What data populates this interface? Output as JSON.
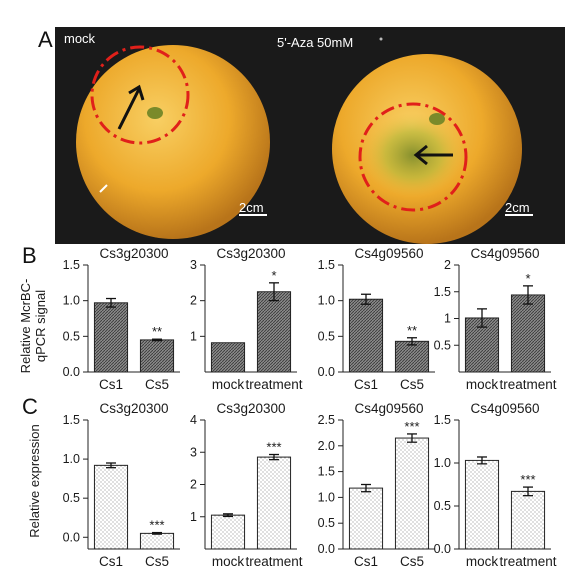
{
  "panel_labels": {
    "a": "A",
    "b": "B",
    "c": "C"
  },
  "photo": {
    "mock_label": "mock",
    "treatment_label": "5'-Aza 50mM",
    "scale_bar_left": "2cm",
    "scale_bar_right": "2cm",
    "fruit_color": "#f0b030",
    "circle_color": "#e0201a",
    "background_color": "#1a1a1a"
  },
  "y_labels": {
    "row_b_line1": "Relative McrBC-",
    "row_b_line2": "qPCR signal",
    "row_c": "Relative expression"
  },
  "chart_data": [
    {
      "type": "bar",
      "row": "B",
      "title": "Cs3g20300",
      "categories": [
        "Cs1",
        "Cs5"
      ],
      "values": [
        0.97,
        0.45
      ],
      "errors": [
        0.06,
        0.01
      ],
      "significance": [
        "",
        "**"
      ],
      "ylim": [
        0,
        1.5
      ],
      "yticks": [
        "0.0",
        "0.5",
        "1.0",
        "1.5"
      ],
      "pattern": "hatch"
    },
    {
      "type": "bar",
      "row": "B",
      "title": "Cs3g20300",
      "categories": [
        "mock",
        "treatment"
      ],
      "values": [
        0.82,
        2.25
      ],
      "errors": [
        0,
        0.25
      ],
      "significance": [
        "",
        "*"
      ],
      "ylim": [
        0,
        3
      ],
      "yticks": [
        "1",
        "2",
        "3"
      ],
      "pattern": "hatch"
    },
    {
      "type": "bar",
      "row": "B",
      "title": "Cs4g09560",
      "categories": [
        "Cs1",
        "Cs5"
      ],
      "values": [
        1.02,
        0.43
      ],
      "errors": [
        0.07,
        0.05
      ],
      "significance": [
        "",
        "**"
      ],
      "ylim": [
        0,
        1.5
      ],
      "yticks": [
        "0.0",
        "0.5",
        "1.0",
        "1.5"
      ],
      "pattern": "hatch"
    },
    {
      "type": "bar",
      "row": "B",
      "title": "Cs4g09560",
      "categories": [
        "mock",
        "treatment"
      ],
      "values": [
        1.01,
        1.44
      ],
      "errors": [
        0.17,
        0.17
      ],
      "significance": [
        "",
        "*"
      ],
      "ylim": [
        0,
        2
      ],
      "yticks": [
        "0.5",
        "1",
        "1.5",
        "2"
      ],
      "pattern": "hatch"
    },
    {
      "type": "bar",
      "row": "C",
      "title": "Cs3g20300",
      "categories": [
        "Cs1",
        "Cs5"
      ],
      "values": [
        0.92,
        0.05
      ],
      "errors": [
        0.03,
        0.01
      ],
      "significance": [
        "",
        "***"
      ],
      "ylim": [
        -0.15,
        1.5
      ],
      "yticks": [
        "0.0",
        "0.5",
        "1.0",
        "1.5"
      ],
      "pattern": "dots"
    },
    {
      "type": "bar",
      "row": "C",
      "title": "Cs3g20300",
      "categories": [
        "mock",
        "treatment"
      ],
      "values": [
        1.05,
        2.85
      ],
      "errors": [
        0.04,
        0.08
      ],
      "significance": [
        "",
        "***"
      ],
      "ylim": [
        0,
        4
      ],
      "yticks": [
        "1",
        "2",
        "3",
        "4"
      ],
      "pattern": "dots"
    },
    {
      "type": "bar",
      "row": "C",
      "title": "Cs4g09560",
      "categories": [
        "Cs1",
        "Cs5"
      ],
      "values": [
        1.18,
        2.15
      ],
      "errors": [
        0.07,
        0.08
      ],
      "significance": [
        "",
        "***"
      ],
      "ylim": [
        0,
        2.5
      ],
      "yticks": [
        "0.0",
        "0.5",
        "1.0",
        "1.5",
        "2.0",
        "2.5"
      ],
      "pattern": "dots"
    },
    {
      "type": "bar",
      "row": "C",
      "title": "Cs4g09560",
      "categories": [
        "mock",
        "treatment"
      ],
      "values": [
        1.03,
        0.67
      ],
      "errors": [
        0.04,
        0.05
      ],
      "significance": [
        "",
        "***"
      ],
      "ylim": [
        0,
        1.5
      ],
      "yticks": [
        "0.0",
        "0.5",
        "1.0",
        "1.5"
      ],
      "pattern": "dots"
    }
  ]
}
